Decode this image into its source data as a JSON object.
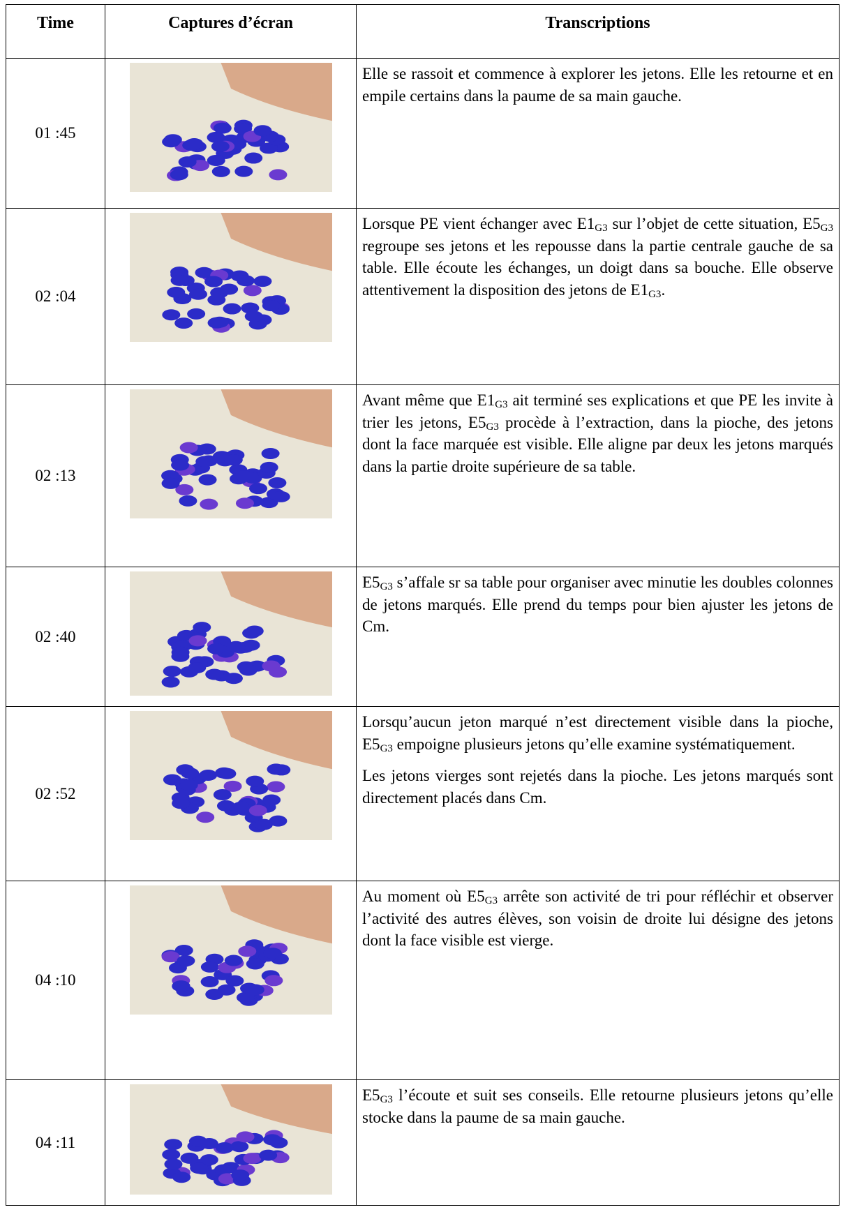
{
  "table": {
    "header": [
      "Time",
      "Captures d’écran",
      "Transcriptions"
    ],
    "rows": [
      {
        "time": "01 :45",
        "transcription": [
          [
            "Elle se rassoit et commence à explorer les jetons. Elle les retourne et en empile certains dans la paume de sa main gauche."
          ]
        ]
      },
      {
        "time": "02 :04",
        "transcription": [
          [
            "Lorsque PE vient échanger avec E1",
            "G3",
            " sur l’objet de cette situation, E5",
            "G3",
            " regroupe ses jetons et les repousse dans la partie centrale gauche de sa table. Elle écoute les échanges, un doigt dans sa bouche. Elle observe attentivement la disposition des jetons de E1",
            "G3",
            "."
          ]
        ]
      },
      {
        "time": "02 :13",
        "transcription": [
          [
            "Avant même que E1",
            "G3",
            " ait terminé ses explications et que PE les invite à trier les jetons, E5",
            "G3",
            " procède à l’extraction, dans la pioche, des jetons dont la face marquée est visible. Elle aligne par deux les jetons marqués dans la partie droite supérieure de sa table."
          ]
        ]
      },
      {
        "time": "02 :40",
        "transcription": [
          [
            "E5",
            "G3",
            " s’affale sr sa table pour organiser avec minutie les doubles colonnes de jetons marqués. Elle prend du temps pour bien ajuster les jetons de Cm."
          ]
        ]
      },
      {
        "time": "02 :52",
        "transcription": [
          [
            "Lorsqu’aucun jeton marqué n’est directement visible dans la pioche, E5",
            "G3",
            " empoigne plusieurs jetons qu’elle examine systématiquement."
          ],
          [
            "Les jetons vierges sont rejetés dans la pioche. Les jetons marqués sont directement placés dans Cm."
          ]
        ]
      },
      {
        "time": "04 :10",
        "transcription": [
          [
            "Au moment où E5",
            "G3",
            " arrête son activité de tri pour réfléchir et observer l’activité des autres élèves, son voisin de droite lui désigne des jetons dont la face visible est vierge."
          ]
        ]
      },
      {
        "time": "04 :11",
        "transcription": [
          [
            "E5",
            "G3",
            " l’écoute et suit ses conseils. Elle retourne plusieurs jetons qu’elle stocke dans la paume de sa main gauche."
          ]
        ]
      }
    ]
  }
}
